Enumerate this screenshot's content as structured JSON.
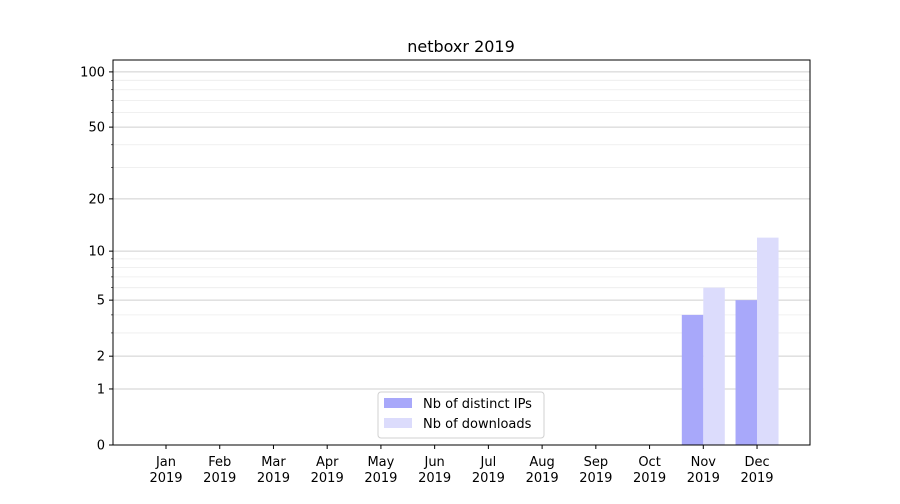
{
  "chart_data": {
    "type": "bar",
    "title": "netboxr 2019",
    "xlabel": "",
    "ylabel": "",
    "yscale": "log(1+y)",
    "ylim": [
      0,
      116
    ],
    "yticks": [
      0,
      1,
      2,
      5,
      10,
      20,
      50,
      100
    ],
    "yminor_ticks": [
      3,
      4,
      6,
      7,
      8,
      9,
      30,
      40,
      60,
      70,
      80,
      90
    ],
    "grid": true,
    "legend_position": "bottom-center",
    "categories": [
      "Jan\n2019",
      "Feb\n2019",
      "Mar\n2019",
      "Apr\n2019",
      "May\n2019",
      "Jun\n2019",
      "Jul\n2019",
      "Aug\n2019",
      "Sep\n2019",
      "Oct\n2019",
      "Nov\n2019",
      "Dec\n2019"
    ],
    "series": [
      {
        "name": "Nb of distinct IPs",
        "color": "#a8a8fa",
        "values": [
          0,
          0,
          0,
          0,
          0,
          0,
          0,
          0,
          0,
          0,
          4,
          5
        ]
      },
      {
        "name": "Nb of downloads",
        "color": "#dcdcfc",
        "values": [
          0,
          0,
          0,
          0,
          0,
          0,
          0,
          0,
          0,
          0,
          6,
          12
        ]
      }
    ]
  }
}
